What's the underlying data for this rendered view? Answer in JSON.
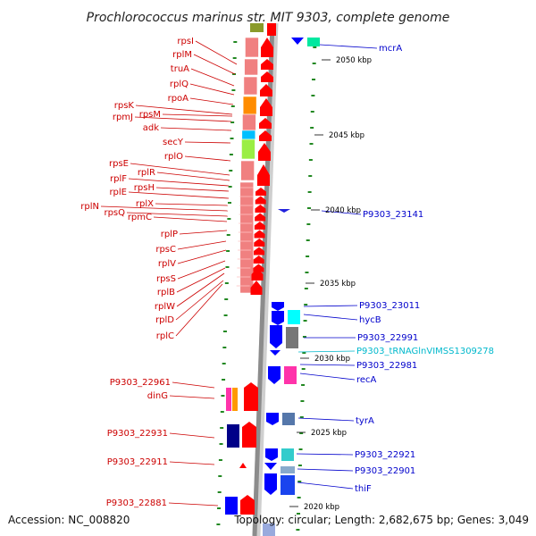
{
  "title": "Prochlorococcus marinus str. MIT 9303, complete genome",
  "footer": {
    "accession": "Accession: NC_008820",
    "topology": "Topology: circular; Length: 2,682,675 bp; Genes: 3,049"
  },
  "colors": {
    "red_gene": "#ff0000",
    "pink_gene": "#f08080",
    "blue_gene": "#0000ff",
    "left_label": "#cc0000",
    "right_label": "#0000cc",
    "rna_label": "#00b8cc",
    "tick": "#228822",
    "backbone": "#888888"
  },
  "scale_marks": [
    {
      "label": "2050 kbp"
    },
    {
      "label": "2045 kbp"
    },
    {
      "label": "2040 kbp"
    },
    {
      "label": "2035 kbp"
    },
    {
      "label": "2030 kbp"
    },
    {
      "label": "2025 kbp"
    },
    {
      "label": "2020 kbp"
    }
  ],
  "left_labels": [
    "rpsI",
    "rplM",
    "truA",
    "rplQ",
    "rpoA",
    "rpsK",
    "rpsM",
    "rpmJ",
    "adk",
    "secY",
    "rplO",
    "rpsE",
    "rplR",
    "rplF",
    "rpsH",
    "rplE",
    "rplX",
    "rplN",
    "rpsQ",
    "rpmC",
    "rplP",
    "rpsC",
    "rplV",
    "rpsS",
    "rplB",
    "rplW",
    "rplD",
    "rplC",
    "P9303_22961",
    "dinG",
    "P9303_22931",
    "P9303_22911",
    "P9303_22881"
  ],
  "right_labels": [
    {
      "text": "mcrA",
      "kind": "protein"
    },
    {
      "text": "P9303_23141",
      "kind": "protein"
    },
    {
      "text": "P9303_23011",
      "kind": "protein"
    },
    {
      "text": "hycB",
      "kind": "protein"
    },
    {
      "text": "P9303_22991",
      "kind": "protein"
    },
    {
      "text": "P9303_tRNAGlnVIMSS1309278",
      "kind": "rna"
    },
    {
      "text": "P9303_22981",
      "kind": "protein"
    },
    {
      "text": "recA",
      "kind": "protein"
    },
    {
      "text": "tyrA",
      "kind": "protein"
    },
    {
      "text": "P9303_22921",
      "kind": "protein"
    },
    {
      "text": "P9303_22901",
      "kind": "protein"
    },
    {
      "text": "thiF",
      "kind": "protein"
    }
  ]
}
